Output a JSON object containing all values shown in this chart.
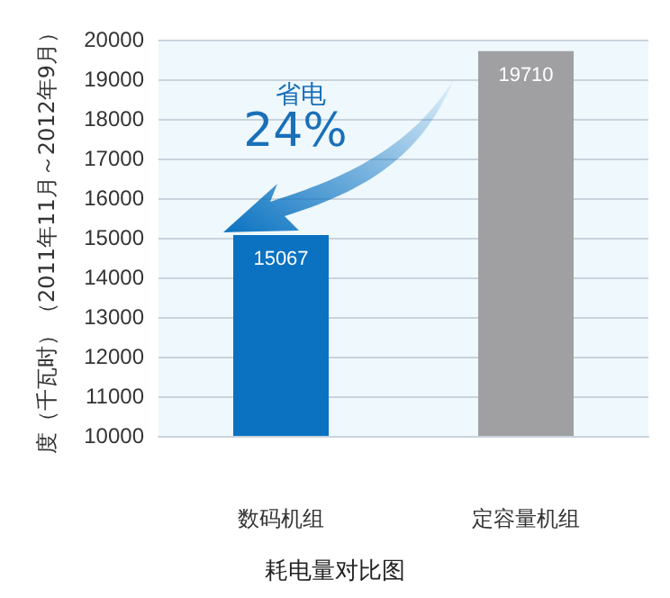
{
  "chart_data": {
    "type": "bar",
    "title": "耗电量对比图",
    "ylabel": "度（千瓦时）（2011年11月～2012年9月）",
    "categories": [
      "数码机组",
      "定容量机组"
    ],
    "values": [
      15067,
      19710
    ],
    "colors": [
      "#0a72c1",
      "#a0a0a2"
    ],
    "ylim": [
      10000,
      20000
    ],
    "yticks": [
      10000,
      11000,
      12000,
      13000,
      14000,
      15000,
      16000,
      17000,
      18000,
      19000,
      20000
    ],
    "grid": "y",
    "data_labels": true,
    "annotations": [
      "省电",
      "24%"
    ]
  }
}
